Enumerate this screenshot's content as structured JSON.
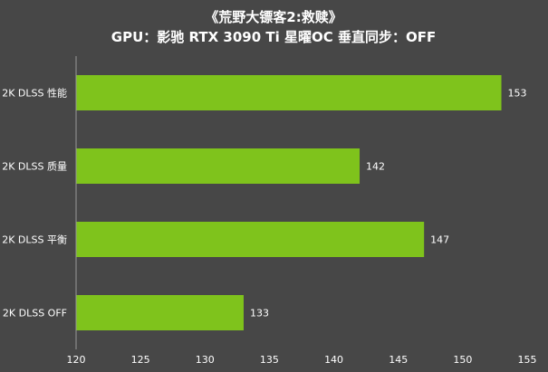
{
  "chart_data": {
    "type": "bar",
    "orientation": "horizontal",
    "title": "《荒野大镖客2:救赎》",
    "subtitle": "GPU：影驰 RTX 3090 Ti 星曜OC  垂直同步：OFF",
    "categories": [
      "2K DLSS 性能",
      "2K DLSS 质量",
      "2K DLSS 平衡",
      "2K DLSS OFF"
    ],
    "values": [
      153,
      142,
      147,
      133
    ],
    "xlim": [
      120,
      155
    ],
    "xticks": [
      120,
      125,
      130,
      135,
      140,
      145,
      150,
      155
    ],
    "grid": false,
    "legend": "none",
    "bar_color": "#7fc31c",
    "background_color": "#474747"
  }
}
